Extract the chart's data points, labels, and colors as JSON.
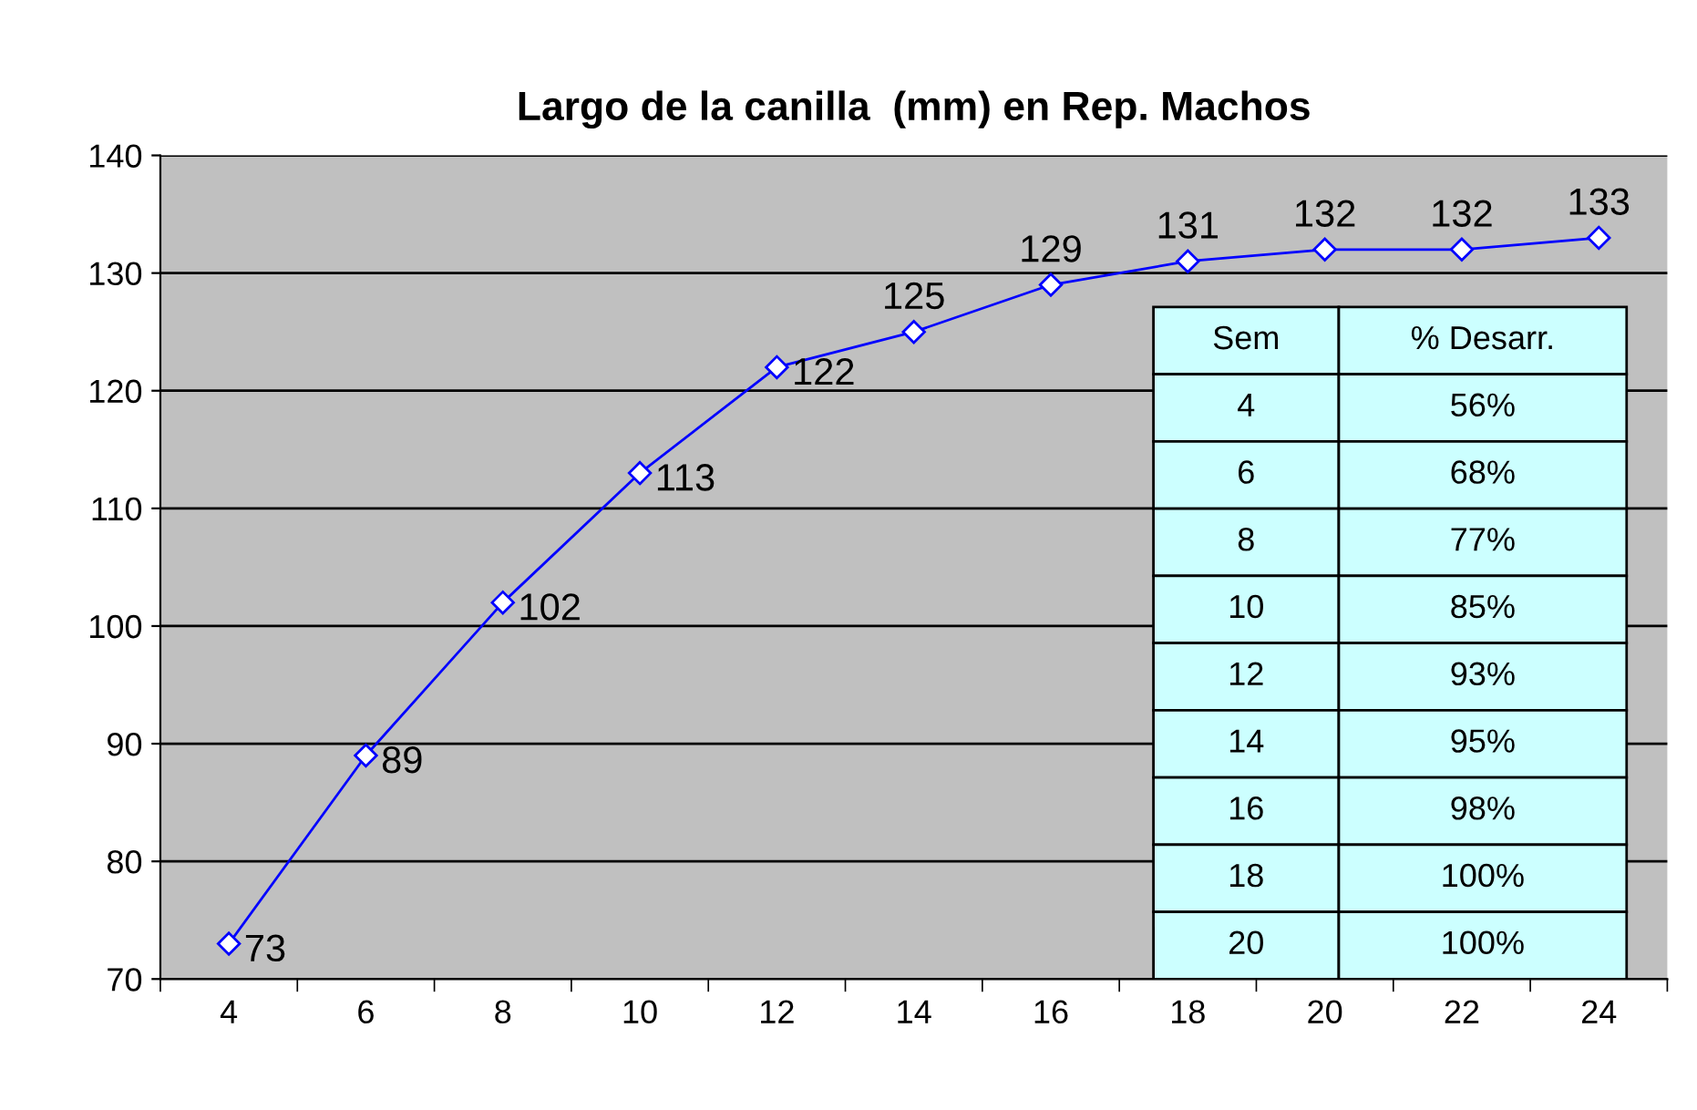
{
  "chart_data": {
    "type": "line",
    "title": "Largo de la canilla  (mm) en Rep. Machos",
    "categories": [
      "4",
      "6",
      "8",
      "10",
      "12",
      "14",
      "16",
      "18",
      "20",
      "22",
      "24"
    ],
    "series": [
      {
        "color": "#0000ff",
        "values": [
          73,
          89,
          102,
          113,
          122,
          125,
          129,
          131,
          132,
          132,
          133
        ]
      }
    ],
    "ylim": [
      70,
      140
    ],
    "yticks": [
      70,
      80,
      90,
      100,
      110,
      120,
      130,
      140
    ],
    "grid": "y",
    "marker": "diamond",
    "line_style": "solid",
    "data_labels": true,
    "legend": false,
    "annotations": [
      "Sem",
      "% Desarr.",
      "4",
      "56%",
      "6",
      "68%",
      "8",
      "77%",
      "10",
      "85%",
      "12",
      "93%",
      "14",
      "95%",
      "16",
      "98%",
      "18",
      "100%",
      "20",
      "100%"
    ]
  }
}
